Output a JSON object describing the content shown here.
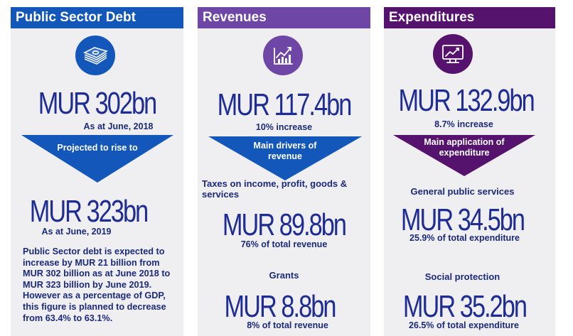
{
  "debt": {
    "title": "Public Sector Debt",
    "icon": "money-stack-icon",
    "value_2018": "MUR 302bn",
    "date_2018": "As at June, 2018",
    "projection": "Projected to rise to",
    "value_2019": "MUR 323bn",
    "date_2019": "As at June, 2019",
    "description": "Public Sector debt is expected to increase by MUR 21 billion from MUR 302 billion as at June 2018 to MUR 323 billion by June 2019. However as a percentage of GDP, this figure is planned to decrease from 63.4% to 63.1%."
  },
  "revenues": {
    "title": "Revenues",
    "icon": "bar-chart-icon",
    "total": "MUR 117.4bn",
    "change": "10% increase",
    "drivers_label": "Main drivers of revenue",
    "taxes_label": "Taxes on income, profit, goods & services",
    "taxes_value": "MUR 89.8bn",
    "taxes_share": "76% of total revenue",
    "grants_label": "Grants",
    "grants_value": "MUR 8.8bn",
    "grants_share": "8% of total revenue"
  },
  "expenditures": {
    "title": "Expenditures",
    "icon": "monitor-chart-icon",
    "total": "MUR 132.9bn",
    "change": "8.7% increase",
    "application_label": "Main application of expenditure",
    "general_label": "General public services",
    "general_value": "MUR 34.5bn",
    "general_share": "25.9% of total expenditure",
    "social_label": "Social protection",
    "social_value": "MUR 35.2bn",
    "social_share": "26.5% of total expenditure"
  },
  "colors": {
    "debt_header": "#1257b9",
    "revenues_header": "#6d46a6",
    "expenditures_header": "#55136e",
    "panel_bg": "#efeff1",
    "text_navy": "#1e2c93"
  }
}
